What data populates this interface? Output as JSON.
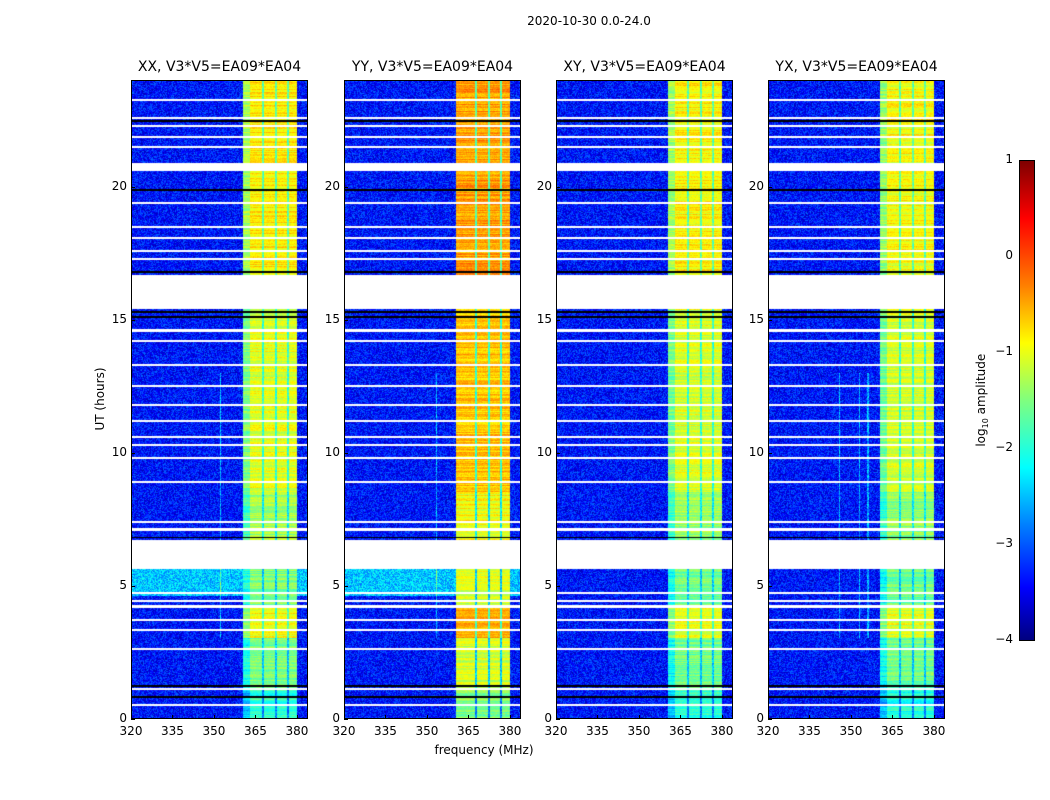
{
  "chart_data": {
    "type": "heatmap",
    "suptitle": "2020-10-30 0.0-24.0",
    "xlabel": "frequency (MHz)",
    "ylabel": "UT (hours)",
    "xlim": [
      320,
      384
    ],
    "ylim": [
      0,
      24
    ],
    "xticks": [
      "320",
      "335",
      "350",
      "365",
      "380"
    ],
    "xtick_values": [
      320,
      335,
      350,
      365,
      380
    ],
    "yticks": [
      "0",
      "5",
      "10",
      "15",
      "20"
    ],
    "ytick_values": [
      0,
      5,
      10,
      15,
      20
    ],
    "colorbar": {
      "label": "log10 amplitude",
      "label_main": "log",
      "label_sub": "10",
      "label_rest": " amplitude",
      "range": [
        -4,
        1
      ],
      "ticks": [
        "1",
        "0",
        "−1",
        "−2",
        "−3",
        "−4"
      ],
      "tick_values": [
        1,
        0,
        -1,
        -2,
        -3,
        -4
      ],
      "colormap": "jet"
    },
    "panels": [
      {
        "title": "XX, V3*V5=EA09*EA04",
        "band_boost": 0.0
      },
      {
        "title": "YY, V3*V5=EA09*EA04",
        "band_boost": 0.4
      },
      {
        "title": "XY, V3*V5=EA09*EA04",
        "band_boost": -0.05
      },
      {
        "title": "YX, V3*V5=EA09*EA04",
        "band_boost": -0.1
      }
    ],
    "background_level": -3.3,
    "rfi_band_mhz": [
      360.5,
      380.5
    ],
    "band_gaps_mhz": [
      [
        367.5,
        368.3
      ],
      [
        372.3,
        373
      ],
      [
        376.8,
        377.5
      ]
    ],
    "band_levels_by_time": [
      {
        "from": 0,
        "to": 1.1,
        "level": -1.9
      },
      {
        "from": 1.1,
        "to": 3,
        "level": -1.5
      },
      {
        "from": 3,
        "to": 4.2,
        "level": -0.9
      },
      {
        "from": 4.2,
        "to": 5.6,
        "level": -1.5
      },
      {
        "from": 6.7,
        "to": 8.5,
        "level": -1.3
      },
      {
        "from": 8.5,
        "to": 15.4,
        "level": -1.0
      },
      {
        "from": 16.7,
        "to": 24,
        "level": -0.8
      }
    ],
    "data_gaps_hours": [
      [
        5.6,
        6.7
      ],
      [
        15.4,
        16.7
      ],
      [
        20.6,
        20.9
      ]
    ],
    "flagged_rows_hours": [
      0.5,
      1.1,
      2.6,
      3.3,
      3.7,
      4.2,
      4.4,
      4.7,
      7.1,
      7.4,
      8.9,
      9.8,
      10.3,
      10.6,
      11.2,
      11.8,
      12.5,
      13.3,
      14.2,
      14.6,
      17.3,
      17.6,
      18.1,
      18.5,
      19.4,
      21.5,
      21.9,
      22.3,
      22.6,
      23.3
    ],
    "black_rows_hours": [
      0.8,
      1.2,
      6.8,
      15.1,
      15.3,
      16.8,
      19.9,
      22.5
    ]
  }
}
